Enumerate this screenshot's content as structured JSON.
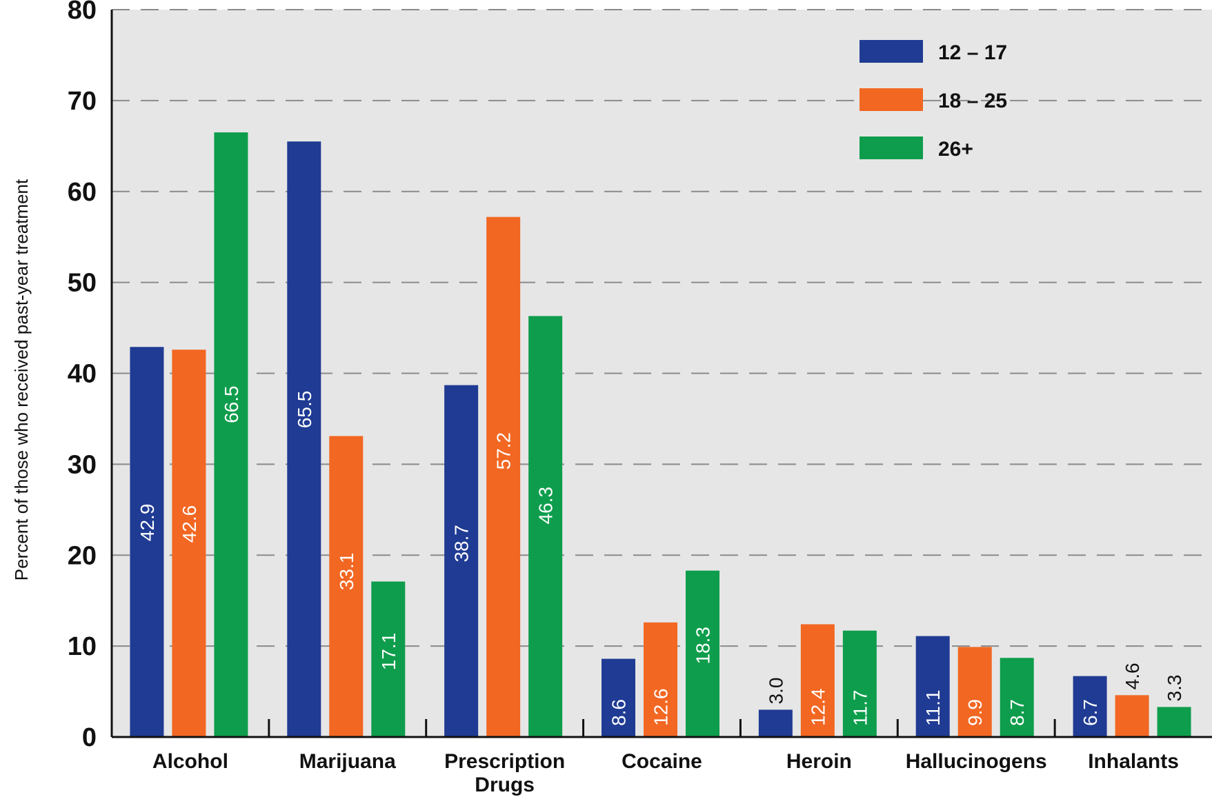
{
  "chart_data": {
    "type": "bar",
    "ylabel": "Percent of those who received past-year treatment",
    "ylim": [
      0,
      80
    ],
    "yticks": [
      "0",
      "10",
      "20",
      "30",
      "40",
      "50",
      "60",
      "70",
      "80"
    ],
    "grid": true,
    "legend_position": "top-right",
    "categories": [
      "Alcohol",
      "Marijuana",
      "Prescription Drugs",
      "Cocaine",
      "Heroin",
      "Hallucinogens",
      "Inhalants"
    ],
    "series": [
      {
        "name": "12 – 17",
        "color": "#1f3b93",
        "values": [
          42.9,
          65.5,
          38.7,
          8.6,
          3.0,
          11.1,
          6.7
        ],
        "labels": [
          "42.9",
          "65.5",
          "38.7",
          "8.6",
          "3.0",
          "11.1",
          "6.7"
        ]
      },
      {
        "name": "18 – 25",
        "color": "#f26722",
        "values": [
          42.6,
          33.1,
          57.2,
          12.6,
          12.4,
          9.9,
          4.6
        ],
        "labels": [
          "42.6",
          "33.1",
          "57.2",
          "12.6",
          "12.4",
          "9.9",
          "4.6"
        ]
      },
      {
        "name": "26+",
        "color": "#0e9d4c",
        "values": [
          66.5,
          17.1,
          46.3,
          18.3,
          11.7,
          8.7,
          3.3
        ],
        "labels": [
          "66.5",
          "17.1",
          "46.3",
          "18.3",
          "11.7",
          "8.7",
          "3.3"
        ]
      }
    ]
  }
}
